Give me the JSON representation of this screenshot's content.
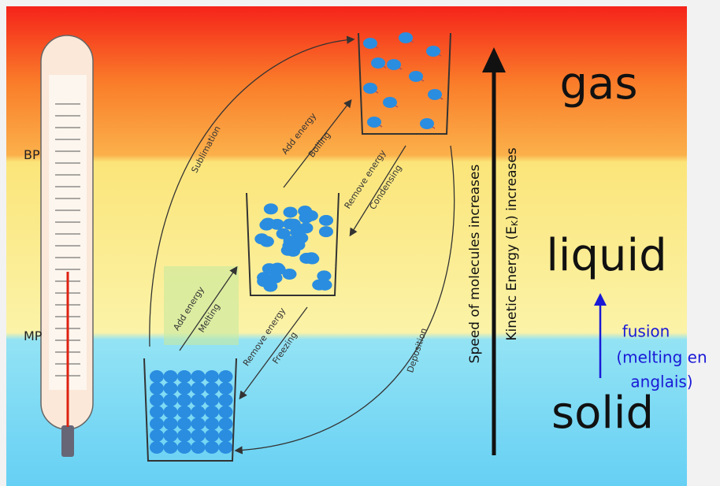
{
  "thermometer": {
    "bp": "BP",
    "mp": "MP"
  },
  "states": {
    "gas": "gas",
    "liquid": "liquid",
    "solid": "solid"
  },
  "transitions": {
    "sublimation": "Sublimation",
    "boiling": {
      "action": "Add energy",
      "name": "Boiling"
    },
    "condensing": {
      "action": "Remove energy",
      "name": "Condensing"
    },
    "melting": {
      "action": "Add energy",
      "name": "Melting"
    },
    "freezing": {
      "action": "Remove energy",
      "name": "Freezing"
    },
    "deposition": "Deposition"
  },
  "axis": {
    "speed": "Speed of molecules increases",
    "kinetic": {
      "before": "Kinetic Energy (E",
      "sub": "K",
      "after": ") increases"
    }
  },
  "note": {
    "lines": [
      "fusion",
      "(melting en",
      "anglais)"
    ]
  }
}
